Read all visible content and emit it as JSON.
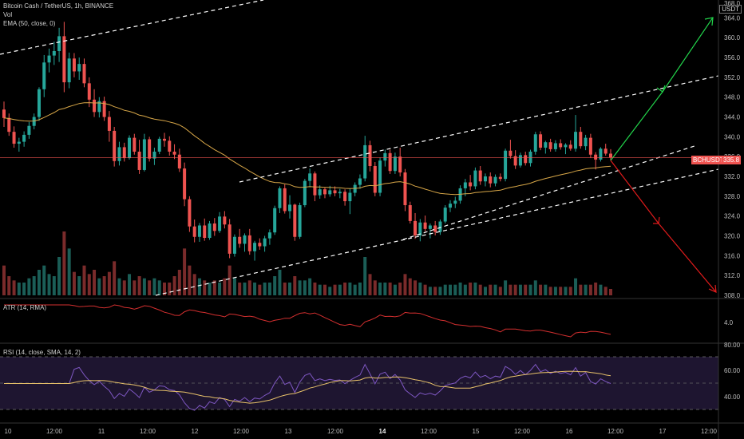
{
  "colors": {
    "bg": "#000000",
    "up": "#26a69a",
    "down": "#ef5350",
    "ema": "#d8a748",
    "atr": "#d32f2f",
    "rsi": "#7e57c2",
    "rsi_ma": "#e8c26a",
    "rsi_band": "#1e1530",
    "arrow_up": "#22d44b",
    "arrow_down": "#e01b1b",
    "channel": "#ffffff"
  },
  "legend": {
    "symbol": "Bitcoin Cash / TetherUS, 1h, BINANCE",
    "vol": "Vol",
    "ema": "EMA (50, close, 0)",
    "atr": "ATR (14, RMA)",
    "rsi": "RSI (14, close, SMA, 14, 2)"
  },
  "price_panel": {
    "currency_box": "USDT",
    "last_symbol_tag": "BCHUSDT",
    "last_price_tag": "335.8",
    "top_partial_tick": "368.0",
    "price_ticks": [
      "364.0",
      "360.0",
      "356.0",
      "352.0",
      "348.0",
      "344.0",
      "340.0",
      "336.0",
      "332.0",
      "328.0",
      "324.0",
      "320.0",
      "316.0",
      "312.0",
      "308.0"
    ]
  },
  "atr_panel": {
    "ticks": [
      "4.0"
    ]
  },
  "rsi_panel": {
    "ticks": [
      "80.00",
      "60.00",
      "40.00"
    ]
  },
  "time_axis": {
    "labels": [
      "10",
      "12:00",
      "11",
      "12:00",
      "12",
      "12:00",
      "13",
      "12:00",
      "14",
      "12:00",
      "15",
      "12:00",
      "16",
      "12:00",
      "17",
      "12:00"
    ]
  },
  "chart_data": {
    "type": "candlestick",
    "title": "Bitcoin Cash / TetherUS, 1h, BINANCE",
    "ylim": [
      308,
      368
    ],
    "last_price": 335.8,
    "candles": [
      [
        345.5,
        347.1,
        342.0,
        343.8
      ],
      [
        343.8,
        344.7,
        340.2,
        341.0
      ],
      [
        341.0,
        342.1,
        337.8,
        338.6
      ],
      [
        338.6,
        339.8,
        337.0,
        339.0
      ],
      [
        339.0,
        341.1,
        338.0,
        340.4
      ],
      [
        340.4,
        343.0,
        339.6,
        342.2
      ],
      [
        342.2,
        344.7,
        341.5,
        344.0
      ],
      [
        344.0,
        350.0,
        343.2,
        349.6
      ],
      [
        349.6,
        356.5,
        348.0,
        355.0
      ],
      [
        355.0,
        357.8,
        353.0,
        356.4
      ],
      [
        356.4,
        359.2,
        354.5,
        357.3
      ],
      [
        357.3,
        362.0,
        355.1,
        360.3
      ],
      [
        360.3,
        363.2,
        349.0,
        351.0
      ],
      [
        351.0,
        357.0,
        349.8,
        355.8
      ],
      [
        355.8,
        356.9,
        352.0,
        353.2
      ],
      [
        353.2,
        356.0,
        351.5,
        354.7
      ],
      [
        354.7,
        355.8,
        350.0,
        350.8
      ],
      [
        350.8,
        352.0,
        346.0,
        347.5
      ],
      [
        347.5,
        349.6,
        344.0,
        345.0
      ],
      [
        345.0,
        348.0,
        343.9,
        347.2
      ],
      [
        347.2,
        348.1,
        343.2,
        344.0
      ],
      [
        344.0,
        345.2,
        339.0,
        341.2
      ],
      [
        341.2,
        342.0,
        334.0,
        335.1
      ],
      [
        335.1,
        339.0,
        334.2,
        337.9
      ],
      [
        337.9,
        338.8,
        335.0,
        335.7
      ],
      [
        335.7,
        340.3,
        335.4,
        339.8
      ],
      [
        339.8,
        340.6,
        336.4,
        337.0
      ],
      [
        337.0,
        339.4,
        332.5,
        333.3
      ],
      [
        333.3,
        340.6,
        333.0,
        339.5
      ],
      [
        339.5,
        340.0,
        335.0,
        335.6
      ],
      [
        335.6,
        337.8,
        334.3,
        337.0
      ],
      [
        337.0,
        340.0,
        336.5,
        339.6
      ],
      [
        339.6,
        340.8,
        338.0,
        339.2
      ],
      [
        339.2,
        340.1,
        336.2,
        337.0
      ],
      [
        337.0,
        338.5,
        335.5,
        336.4
      ],
      [
        336.4,
        337.6,
        332.9,
        333.6
      ],
      [
        333.6,
        334.8,
        326.0,
        327.4
      ],
      [
        327.4,
        328.0,
        320.8,
        321.9
      ],
      [
        321.9,
        323.3,
        318.7,
        319.8
      ],
      [
        319.8,
        322.6,
        318.8,
        322.1
      ],
      [
        322.1,
        323.5,
        319.0,
        319.6
      ],
      [
        319.6,
        323.0,
        319.2,
        322.5
      ],
      [
        322.5,
        323.6,
        320.0,
        321.0
      ],
      [
        321.0,
        324.8,
        320.6,
        323.9
      ],
      [
        323.9,
        325.0,
        321.5,
        322.3
      ],
      [
        322.3,
        323.4,
        315.5,
        316.4
      ],
      [
        316.4,
        320.3,
        315.8,
        319.8
      ],
      [
        319.8,
        321.4,
        317.6,
        318.4
      ],
      [
        318.4,
        320.5,
        316.8,
        320.1
      ],
      [
        320.1,
        321.4,
        316.2,
        316.9
      ],
      [
        316.9,
        319.0,
        315.0,
        318.6
      ],
      [
        318.6,
        319.5,
        317.2,
        317.9
      ],
      [
        317.9,
        320.0,
        316.8,
        319.5
      ],
      [
        319.5,
        321.3,
        318.2,
        320.7
      ],
      [
        320.7,
        326.1,
        320.2,
        325.6
      ],
      [
        325.6,
        330.0,
        324.6,
        329.6
      ],
      [
        329.6,
        330.4,
        324.5,
        325.0
      ],
      [
        325.0,
        328.2,
        323.5,
        326.3
      ],
      [
        326.3,
        326.5,
        319.0,
        319.8
      ],
      [
        319.8,
        326.7,
        319.4,
        326.2
      ],
      [
        326.2,
        331.5,
        325.8,
        331.1
      ],
      [
        331.1,
        333.6,
        329.8,
        332.6
      ],
      [
        332.6,
        333.0,
        327.0,
        328.2
      ],
      [
        328.2,
        330.2,
        327.5,
        329.4
      ],
      [
        329.4,
        329.8,
        327.6,
        328.4
      ],
      [
        328.4,
        330.1,
        327.9,
        329.2
      ],
      [
        329.2,
        330.0,
        328.0,
        328.6
      ],
      [
        328.6,
        329.5,
        327.6,
        328.9
      ],
      [
        328.9,
        329.4,
        326.1,
        327.0
      ],
      [
        327.0,
        329.6,
        324.4,
        328.7
      ],
      [
        328.7,
        330.8,
        328.0,
        330.3
      ],
      [
        330.3,
        332.4,
        329.5,
        331.6
      ],
      [
        331.6,
        340.2,
        331.0,
        338.3
      ],
      [
        338.3,
        339.2,
        333.0,
        334.1
      ],
      [
        334.1,
        334.9,
        328.0,
        328.7
      ],
      [
        328.7,
        335.8,
        328.0,
        335.2
      ],
      [
        335.2,
        337.4,
        334.0,
        336.7
      ],
      [
        336.7,
        337.4,
        332.5,
        333.1
      ],
      [
        333.1,
        336.8,
        332.5,
        336.0
      ],
      [
        336.0,
        337.8,
        332.0,
        332.8
      ],
      [
        332.8,
        333.5,
        325.0,
        326.2
      ],
      [
        326.2,
        326.9,
        322.5,
        323.0
      ],
      [
        323.0,
        324.6,
        319.4,
        320.1
      ],
      [
        320.1,
        323.4,
        318.9,
        322.7
      ],
      [
        322.7,
        324.1,
        320.9,
        321.4
      ],
      [
        321.4,
        322.5,
        319.5,
        322.1
      ],
      [
        322.1,
        323.0,
        320.1,
        320.8
      ],
      [
        320.8,
        323.3,
        320.2,
        322.9
      ],
      [
        322.9,
        326.2,
        322.5,
        325.7
      ],
      [
        325.7,
        327.2,
        324.8,
        326.5
      ],
      [
        326.5,
        327.9,
        325.6,
        327.1
      ],
      [
        327.1,
        330.2,
        326.5,
        329.6
      ],
      [
        329.6,
        331.5,
        328.0,
        330.8
      ],
      [
        330.8,
        332.3,
        329.2,
        330.0
      ],
      [
        330.0,
        333.8,
        329.4,
        333.2
      ],
      [
        333.2,
        334.1,
        330.3,
        331.0
      ],
      [
        331.0,
        332.6,
        330.0,
        332.0
      ],
      [
        332.0,
        332.8,
        329.8,
        330.6
      ],
      [
        330.6,
        332.4,
        330.0,
        331.9
      ],
      [
        331.9,
        332.6,
        331.0,
        331.5
      ],
      [
        331.5,
        337.6,
        331.0,
        337.2
      ],
      [
        337.2,
        339.4,
        335.6,
        336.1
      ],
      [
        336.1,
        337.3,
        333.5,
        334.2
      ],
      [
        334.2,
        336.8,
        333.8,
        336.3
      ],
      [
        336.3,
        337.0,
        334.2,
        334.7
      ],
      [
        334.7,
        337.4,
        334.0,
        337.0
      ],
      [
        337.0,
        341.0,
        336.4,
        340.5
      ],
      [
        340.5,
        341.1,
        337.3,
        337.8
      ],
      [
        337.8,
        339.2,
        336.6,
        338.9
      ],
      [
        338.9,
        339.6,
        337.0,
        337.5
      ],
      [
        337.5,
        339.3,
        337.0,
        338.7
      ],
      [
        338.7,
        339.5,
        337.4,
        337.9
      ],
      [
        337.9,
        338.7,
        336.5,
        338.4
      ],
      [
        338.4,
        339.3,
        337.2,
        337.6
      ],
      [
        337.6,
        344.4,
        337.0,
        341.0
      ],
      [
        341.0,
        342.0,
        337.6,
        338.1
      ],
      [
        338.1,
        340.4,
        337.3,
        339.8
      ],
      [
        339.8,
        340.6,
        335.7,
        336.4
      ],
      [
        336.4,
        336.9,
        333.4,
        335.4
      ],
      [
        335.4,
        337.9,
        335.0,
        337.6
      ],
      [
        337.6,
        338.6,
        336.2,
        336.6
      ],
      [
        336.6,
        337.5,
        335.2,
        335.8
      ]
    ],
    "volume": [
      14,
      9,
      7,
      6,
      6,
      8,
      9,
      12,
      14,
      10,
      9,
      18,
      30,
      22,
      11,
      9,
      14,
      10,
      12,
      8,
      9,
      11,
      16,
      8,
      7,
      10,
      7,
      9,
      8,
      7,
      8,
      7,
      6,
      6,
      9,
      12,
      22,
      14,
      10,
      8,
      7,
      6,
      7,
      6,
      8,
      14,
      8,
      6,
      6,
      7,
      6,
      5,
      6,
      6,
      9,
      12,
      6,
      6,
      9,
      7,
      7,
      8,
      6,
      5,
      5,
      4,
      5,
      5,
      6,
      6,
      5,
      6,
      18,
      10,
      7,
      6,
      6,
      6,
      5,
      6,
      10,
      8,
      7,
      6,
      5,
      4,
      4,
      4,
      5,
      5,
      5,
      6,
      5,
      6,
      6,
      5,
      4,
      5,
      5,
      4,
      7,
      5,
      5,
      5,
      5,
      5,
      7,
      5,
      5,
      4,
      4,
      4,
      4,
      4,
      8,
      5,
      5,
      5,
      6,
      5,
      4,
      3
    ],
    "ema50": [],
    "atr": {
      "ticks": [
        4.0
      ]
    },
    "rsi": {
      "ticks": [
        80,
        60,
        40
      ],
      "upper": 70,
      "mid": 50,
      "lower": 30
    }
  }
}
